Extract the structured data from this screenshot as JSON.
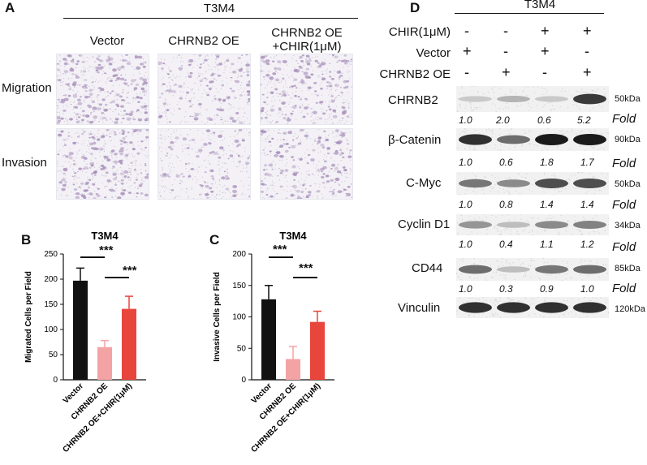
{
  "figure_colors": {
    "vector": "#111111",
    "chrnb2_oe": "#f4a3a5",
    "chrnb2_chir": "#e8453c",
    "cells": "#a58bb8"
  },
  "panel_a": {
    "letter": "A",
    "cell_line": "T3M4",
    "columns": [
      "Vector",
      "CHRNB2 OE",
      "CHRNB2 OE\n+CHIR(1μM)"
    ],
    "col_line1": [
      "Vector",
      "CHRNB2 OE",
      "CHRNB2 OE"
    ],
    "col_line2": [
      "",
      "",
      "+CHIR(1μM)"
    ],
    "rows": [
      "Migration",
      "Invasion"
    ],
    "density": [
      [
        0.85,
        0.35,
        0.6
      ],
      [
        0.7,
        0.2,
        0.55
      ]
    ]
  },
  "panel_b": {
    "letter": "B",
    "significance": [
      "***",
      "***"
    ]
  },
  "panel_c": {
    "letter": "C",
    "significance": [
      "***",
      "***"
    ]
  },
  "chart_data": [
    {
      "type": "bar",
      "title": "T3M4",
      "ylabel": "Migrated Cells per Field",
      "xlabel": "",
      "categories": [
        "Vector",
        "CHRNB2 OE",
        "CHRNB2 OE+CHIR(1μM)"
      ],
      "values": [
        197,
        65,
        141
      ],
      "errors": [
        25,
        13,
        25
      ],
      "colors": [
        "#111111",
        "#f4a3a5",
        "#e8453c"
      ],
      "ylim": [
        0,
        250
      ],
      "yticks": [
        0,
        50,
        100,
        150,
        200,
        250
      ],
      "ytick_labels": [
        "0",
        "50",
        "100",
        "150",
        "200",
        "250"
      ],
      "grid": false
    },
    {
      "type": "bar",
      "title": "T3M4",
      "ylabel": "Invasive Cells per Field",
      "xlabel": "",
      "categories": [
        "Vector",
        "CHRNB2 OE",
        "CHRNB2 OE+CHIR(1μM)"
      ],
      "values": [
        128,
        33,
        92
      ],
      "errors": [
        22,
        20,
        17
      ],
      "colors": [
        "#111111",
        "#f4a3a5",
        "#e8453c"
      ],
      "ylim": [
        0,
        200
      ],
      "yticks": [
        0,
        50,
        100,
        150,
        200
      ],
      "ytick_labels": [
        "0",
        "50",
        "100",
        "150",
        "200"
      ],
      "grid": false
    }
  ],
  "panel_d": {
    "letter": "D",
    "cell_line": "T3M4",
    "treatments": [
      {
        "label": "CHIR(1μM)",
        "signs": [
          "-",
          "-",
          "+",
          "+"
        ]
      },
      {
        "label": "Vector",
        "signs": [
          "+",
          "-",
          "+",
          "-"
        ]
      },
      {
        "label": "CHRNB2 OE",
        "signs": [
          "-",
          "+",
          "-",
          "+"
        ]
      }
    ],
    "blots": [
      {
        "label": "CHRNB2",
        "kda": "50kDa",
        "folds": [
          "1.0",
          "2.0",
          "0.6",
          "5.2"
        ],
        "fold_label": "Fold",
        "intensity": [
          0.15,
          0.25,
          0.15,
          0.85
        ]
      },
      {
        "label": "β-Catenin",
        "kda": "90kDa",
        "folds": [
          "1.0",
          "0.6",
          "1.8",
          "1.7"
        ],
        "fold_label": "Fold",
        "intensity": [
          0.9,
          0.6,
          1.0,
          1.0
        ]
      },
      {
        "label": "C-Myc",
        "kda": "50kDa",
        "folds": [
          "1.0",
          "0.8",
          "1.4",
          "1.4"
        ],
        "fold_label": "Fold",
        "intensity": [
          0.55,
          0.45,
          0.75,
          0.75
        ]
      },
      {
        "label": "Cyclin D1",
        "kda": "34kDa",
        "folds": [
          "1.0",
          "0.4",
          "1.1",
          "1.2"
        ],
        "fold_label": "Fold",
        "intensity": [
          0.4,
          0.2,
          0.45,
          0.5
        ]
      },
      {
        "label": "CD44",
        "kda": "85kDa",
        "folds": [
          "1.0",
          "0.3",
          "0.9",
          "1.0"
        ],
        "fold_label": "Fold",
        "intensity": [
          0.6,
          0.2,
          0.55,
          0.6
        ]
      },
      {
        "label": "Vinculin",
        "kda": "120kDa",
        "folds": [],
        "fold_label": "",
        "intensity": [
          0.9,
          0.9,
          0.9,
          0.9
        ]
      }
    ]
  }
}
